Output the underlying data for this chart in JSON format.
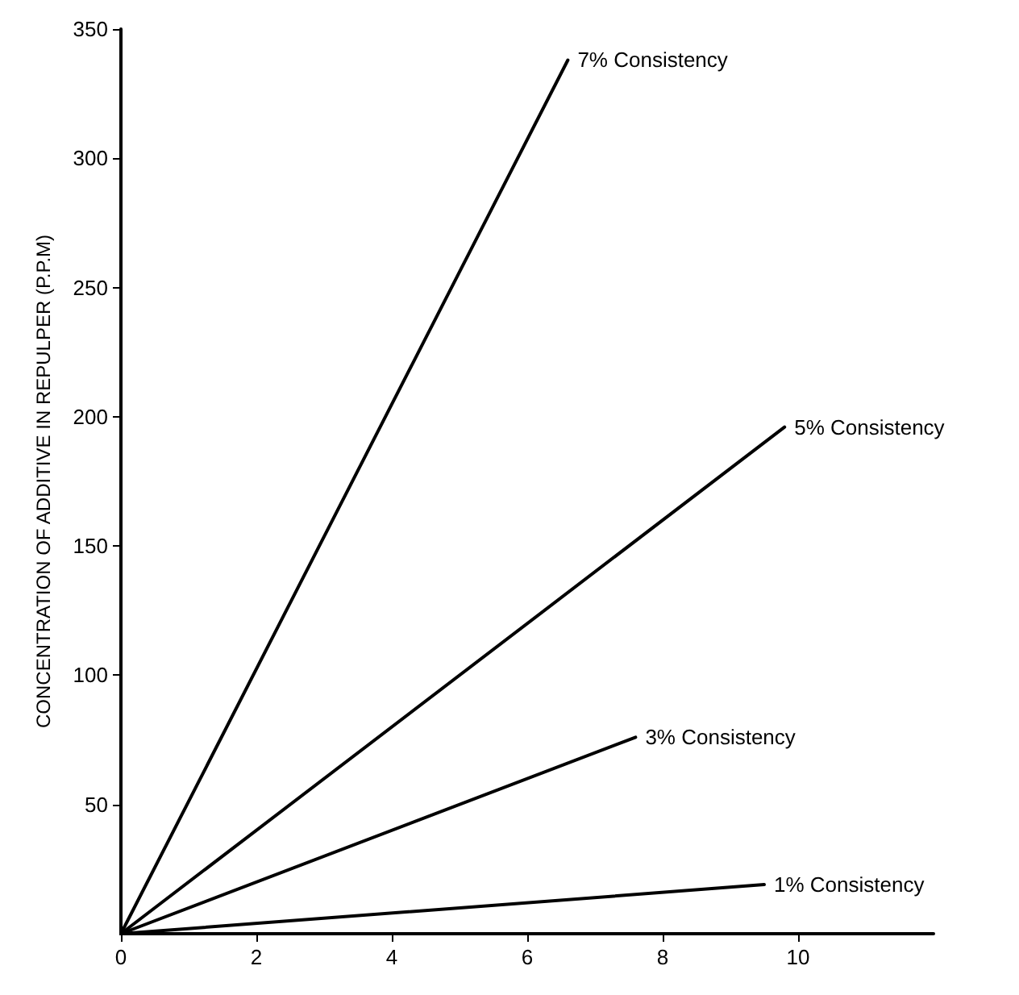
{
  "chart_data": {
    "type": "line",
    "ylabel": "CONCENTRATION OF ADDITIVE IN REPULPER (P.P.M)",
    "xlim": [
      0,
      12
    ],
    "xticks": [
      0,
      2,
      4,
      6,
      8,
      10
    ],
    "ylim": [
      0,
      350
    ],
    "yticks": [
      50,
      100,
      150,
      200,
      250,
      300,
      350
    ],
    "grid": false,
    "legend": false,
    "marker": "none",
    "line_style": "solid",
    "series": [
      {
        "name": "7% Consistency",
        "color": "#000000",
        "x": [
          0,
          6.6
        ],
        "values": [
          0,
          338
        ]
      },
      {
        "name": "5% Consistency",
        "color": "#000000",
        "x": [
          0,
          9.8
        ],
        "values": [
          0,
          196
        ]
      },
      {
        "name": "3% Consistency",
        "color": "#000000",
        "x": [
          0,
          7.6
        ],
        "values": [
          0,
          76
        ]
      },
      {
        "name": "1% Consistency",
        "color": "#000000",
        "x": [
          0,
          9.5
        ],
        "values": [
          0,
          19
        ]
      }
    ]
  }
}
